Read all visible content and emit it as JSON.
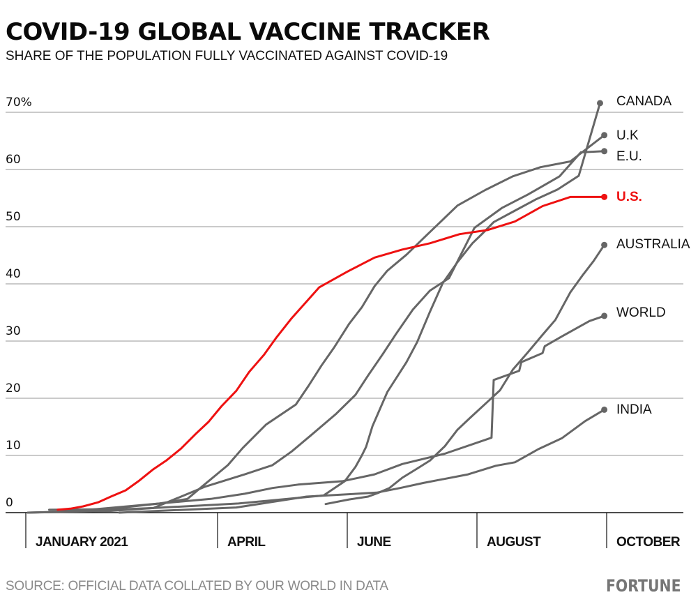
{
  "header": {
    "title": "COVID-19 GLOBAL VACCINE TRACKER",
    "subtitle": "SHARE OF THE POPULATION FULLY VACCINATED AGAINST COVID-19"
  },
  "footer": {
    "source": "SOURCE: OFFICIAL DATA COLLATED BY OUR WORLD IN DATA",
    "logo": "FORTUNE"
  },
  "colors": {
    "highlight": "#ee1111",
    "series": "#666666",
    "grid": "#aaaaaa",
    "axis": "#111111",
    "logo": "#767676"
  },
  "chart_data": {
    "type": "line",
    "title": "COVID-19 GLOBAL VACCINE TRACKER",
    "subtitle": "SHARE OF THE POPULATION FULLY VACCINATED AGAINST COVID-19",
    "xlabel": "",
    "ylabel": "",
    "x_unit": "days since Jan 1, 2021",
    "xlim": [
      0,
      272
    ],
    "ylim": [
      0,
      70
    ],
    "grid": true,
    "legend": "direct-labels-right",
    "yticks": [
      {
        "value": 0,
        "label": "0"
      },
      {
        "value": 10,
        "label": "10"
      },
      {
        "value": 20,
        "label": "20"
      },
      {
        "value": 30,
        "label": "30"
      },
      {
        "value": 40,
        "label": "40"
      },
      {
        "value": 50,
        "label": "50"
      },
      {
        "value": 60,
        "label": "60"
      },
      {
        "value": 70,
        "label": "70%"
      }
    ],
    "xticks": [
      {
        "value": 0,
        "label": "JANUARY 2021"
      },
      {
        "value": 90,
        "label": "APRIL"
      },
      {
        "value": 151,
        "label": "JUNE"
      },
      {
        "value": 212,
        "label": "AUGUST"
      },
      {
        "value": 273,
        "label": "OCTOBER"
      }
    ],
    "series": [
      {
        "name": "CANADA",
        "highlight": false,
        "x": [
          1,
          20,
          60,
          100,
          140,
          150,
          155,
          158,
          160,
          163,
          170,
          179,
          184,
          190,
          196,
          203,
          210,
          215,
          220,
          230,
          240,
          250,
          260,
          270
        ],
        "y": [
          0,
          0.2,
          0.8,
          1.6,
          3.0,
          5.5,
          8.0,
          10.0,
          11.5,
          15.1,
          21.1,
          26.3,
          29.8,
          35.1,
          40.1,
          43.8,
          47.1,
          48.9,
          50.8,
          52.8,
          54.8,
          56.5,
          58.9,
          71.6
        ]
      },
      {
        "name": "U.K",
        "highlight": false,
        "x": [
          11,
          38,
          63,
          76,
          83,
          95,
          102,
          113,
          127,
          133,
          139,
          145,
          152,
          158,
          164,
          170,
          179,
          189,
          196,
          203,
          216,
          229,
          242,
          256,
          272
        ],
        "y": [
          0.5,
          0.6,
          1.6,
          2.4,
          4.6,
          8.3,
          11.3,
          15.4,
          18.9,
          22.2,
          25.7,
          28.9,
          33.0,
          35.9,
          39.6,
          42.3,
          45.1,
          48.7,
          51.2,
          53.7,
          56.4,
          58.8,
          60.4,
          61.4,
          66.0
        ]
      },
      {
        "name": "E.U.",
        "highlight": false,
        "x": [
          1,
          40,
          60,
          84,
          103,
          116,
          125,
          134,
          146,
          155,
          161,
          168,
          174,
          182,
          190,
          199,
          211,
          224,
          236,
          251,
          261,
          272
        ],
        "y": [
          0,
          0.3,
          0.8,
          4.5,
          6.7,
          8.3,
          10.7,
          13.5,
          17.3,
          20.6,
          24.0,
          27.8,
          31.2,
          35.5,
          38.8,
          41.0,
          49.8,
          53.3,
          55.6,
          58.8,
          63.0,
          63.2
        ]
      },
      {
        "name": "U.S.",
        "highlight": true,
        "x": [
          15,
          21,
          27,
          34,
          40,
          47,
          53,
          60,
          66,
          73,
          80,
          86,
          92,
          99,
          105,
          112,
          118,
          125,
          138,
          151,
          164,
          177,
          190,
          204,
          217,
          230,
          243,
          256,
          272
        ],
        "y": [
          0.5,
          0.7,
          1.1,
          1.8,
          2.8,
          3.9,
          5.5,
          7.6,
          9.1,
          11.2,
          13.8,
          15.9,
          18.6,
          21.3,
          24.6,
          27.6,
          30.7,
          34.0,
          39.4,
          42.1,
          44.6,
          46.0,
          47.1,
          48.7,
          49.4,
          50.9,
          53.6,
          55.2,
          55.2
        ]
      },
      {
        "name": "AUSTRALIA",
        "highlight": false,
        "x": [
          141,
          152,
          161,
          166,
          171,
          177,
          184,
          190,
          197,
          203,
          209,
          216,
          223,
          229,
          236,
          243,
          249,
          256,
          262,
          267,
          272
        ],
        "y": [
          1.5,
          2.3,
          2.8,
          3.5,
          4.3,
          6.1,
          7.7,
          9.1,
          11.6,
          14.5,
          16.6,
          19.0,
          21.4,
          25.0,
          28.0,
          31.1,
          33.7,
          38.5,
          41.6,
          44.0,
          46.8
        ]
      },
      {
        "name": "WORLD",
        "highlight": false,
        "x": [
          21,
          87,
          103,
          116,
          128,
          149,
          164,
          177,
          197,
          219,
          220,
          232,
          233,
          243,
          244,
          252,
          265,
          272
        ],
        "y": [
          0.2,
          2.4,
          3.3,
          4.3,
          4.9,
          5.5,
          6.7,
          8.5,
          10.3,
          13.1,
          23.2,
          24.8,
          26.3,
          27.9,
          29.1,
          30.8,
          33.5,
          34.4
        ]
      },
      {
        "name": "INDIA",
        "highlight": false,
        "x": [
          44,
          99,
          132,
          165,
          176,
          187,
          208,
          221,
          230,
          241,
          252,
          263,
          272
        ],
        "y": [
          0,
          0.9,
          2.8,
          3.5,
          4.3,
          5.2,
          6.7,
          8.2,
          8.8,
          11.1,
          13.0,
          16.0,
          18.0
        ]
      }
    ]
  }
}
